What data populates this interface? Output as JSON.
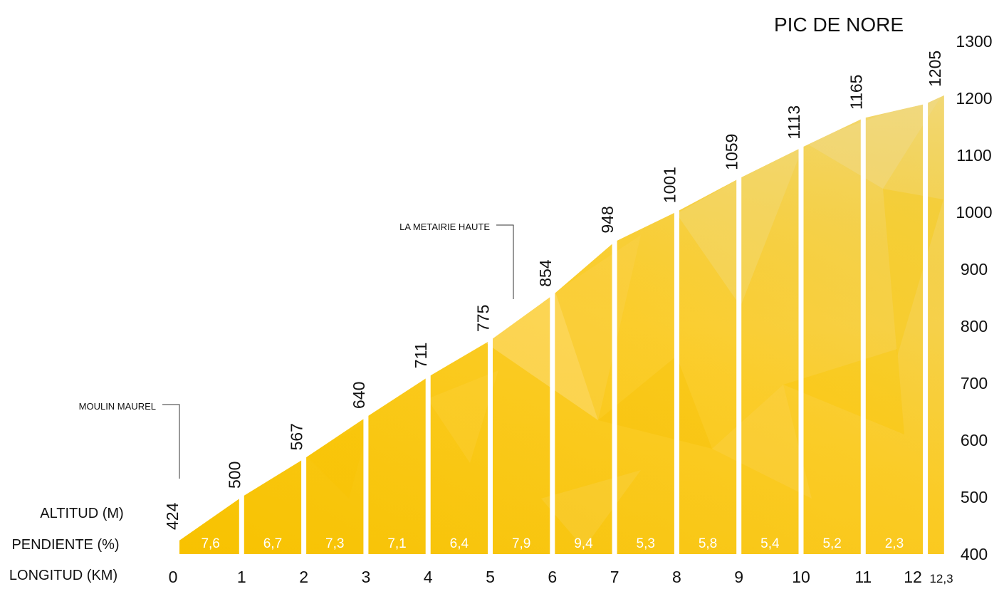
{
  "chart_data": {
    "type": "area",
    "title": "PIC DE NORE",
    "row_labels": {
      "altitude": "ALTITUD (M)",
      "gradient": "PENDIENTE (%)",
      "distance": "LONGITUD (KM)"
    },
    "km_labels": [
      "0",
      "1",
      "2",
      "3",
      "4",
      "5",
      "6",
      "7",
      "8",
      "9",
      "10",
      "11",
      "12",
      "12,3"
    ],
    "x": [
      0,
      1,
      2,
      3,
      4,
      5,
      6,
      7,
      8,
      9,
      10,
      11,
      12,
      12.3
    ],
    "altitudes": [
      424,
      500,
      567,
      640,
      711,
      775,
      854,
      948,
      1001,
      1059,
      1113,
      1165,
      1190,
      1205
    ],
    "altitude_labels": [
      "424",
      "500",
      "567",
      "640",
      "711",
      "775",
      "854",
      "948",
      "1001",
      "1059",
      "1113",
      "1165",
      "1205"
    ],
    "gradients": [
      "7,6",
      "6,7",
      "7,3",
      "7,1",
      "6,4",
      "7,9",
      "9,4",
      "5,3",
      "5,8",
      "5,4",
      "5,2",
      "2,3"
    ],
    "y_ticks": [
      "400",
      "500",
      "600",
      "700",
      "800",
      "900",
      "1000",
      "1100",
      "1200",
      "1300"
    ],
    "ylim": [
      400,
      1300
    ],
    "annotations": [
      {
        "label": "MOULIN MAUREL",
        "km": 0
      },
      {
        "label": "LA METAIRIE HAUTE",
        "km": 5.5
      }
    ],
    "colors": {
      "fill_dark": "#f7c200",
      "fill_light": "#fbd24a",
      "fill_pale": "#f1d36a",
      "gap": "#ffffff",
      "text": "#111111"
    }
  }
}
